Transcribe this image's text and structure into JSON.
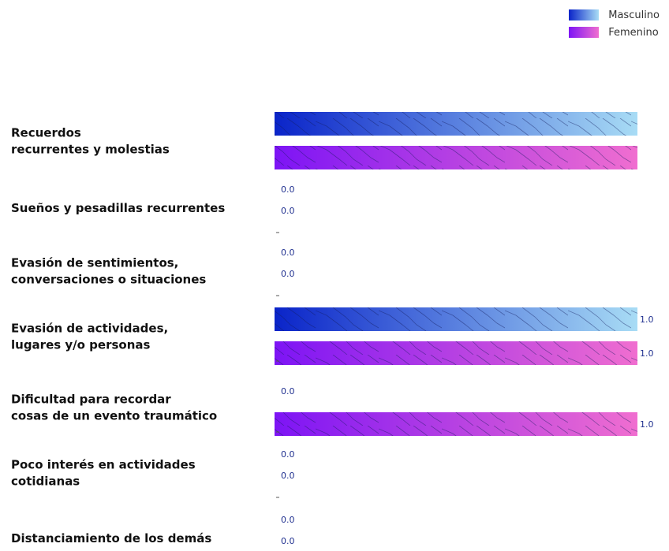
{
  "chart_data": {
    "type": "bar",
    "orientation": "horizontal",
    "categories": [
      "Recuerdos\nrecurrentes y molestias",
      "Sueños y pesadillas recurrentes",
      "Evasión de sentimientos,\nconversaciones o situaciones",
      "Evasión de actividades,\nlugares y/o personas",
      "Dificultad para recordar\ncosas de un evento traumático",
      "Poco interés en actividades\ncotidianas",
      "Distanciamiento de los demás"
    ],
    "series": [
      {
        "name": "Masculino",
        "values": [
          1.0,
          0.0,
          0.0,
          1.0,
          0.0,
          0.0,
          0.0
        ]
      },
      {
        "name": "Femenino",
        "values": [
          1.0,
          0.0,
          0.0,
          1.0,
          1.0,
          0.0,
          0.0
        ]
      }
    ],
    "value_labels": [
      [
        "",
        "0.0",
        "0.0",
        "1.0",
        "0.0",
        "0.0",
        "0.0"
      ],
      [
        "",
        "0.0",
        "0.0",
        "1.0",
        "1.0",
        "0.0",
        "0.0"
      ]
    ],
    "xlim": [
      0,
      1.0
    ],
    "legend_position": "top-right",
    "grid": false
  },
  "colors": {
    "masculino_start": "#0a24c9",
    "masculino_end": "#a8dcf5",
    "femenino_start": "#7d14f5",
    "femenino_end": "#f06ed0",
    "value_label": "#1f2f8f",
    "category_label": "#111111"
  }
}
